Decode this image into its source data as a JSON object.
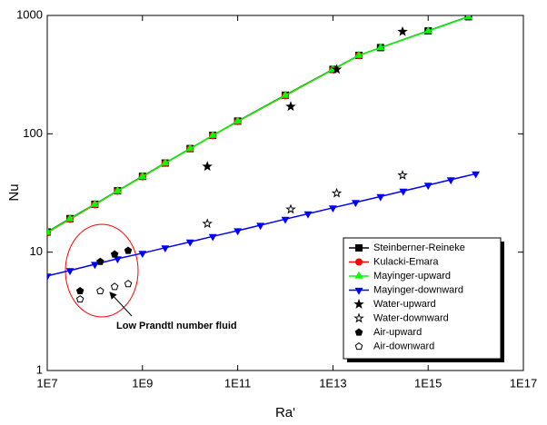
{
  "chart_data": {
    "type": "line",
    "xlabel": "Ra'",
    "ylabel": "Nu",
    "xscale": "log",
    "yscale": "log",
    "xlim": [
      10000000.0,
      1e+17
    ],
    "ylim": [
      1,
      1000
    ],
    "xticks": [
      {
        "value": 10000000.0,
        "label": "1E7"
      },
      {
        "value": 1000000000.0,
        "label": "1E9"
      },
      {
        "value": 100000000000.0,
        "label": "1E11"
      },
      {
        "value": 10000000000000.0,
        "label": "1E13"
      },
      {
        "value": 1000000000000000.0,
        "label": "1E15"
      },
      {
        "value": 1e+17,
        "label": "1E17"
      }
    ],
    "yticks": [
      1,
      10,
      100,
      1000
    ],
    "legend": "lower right",
    "annotation": "Low Prandtl number fluid",
    "series": [
      {
        "name": "Steinberner-Reineke",
        "color": "#000000",
        "marker": "square",
        "filled": true,
        "line": true,
        "x": [
          10000000.0,
          30000000.0,
          100000000.0,
          300000000.0,
          1000000000.0,
          3000000000.0,
          10000000000.0,
          30000000000.0,
          100000000000.0,
          1000000000000.0,
          10000000000000.0,
          35000000000000.0,
          100000000000000.0,
          1000000000000000.0,
          7000000000000000.0
        ],
        "values": [
          14.8,
          19.2,
          25.4,
          33,
          43.7,
          56.6,
          75,
          97,
          128,
          212,
          350,
          460,
          535,
          740,
          975
        ]
      },
      {
        "name": "Kulacki-Emara",
        "color": "#ff0000",
        "marker": "circle",
        "filled": true,
        "line": true,
        "x": [
          10000000.0,
          30000000.0,
          100000000.0,
          300000000.0,
          1000000000.0,
          3000000000.0,
          10000000000.0,
          30000000000.0,
          100000000000.0,
          1000000000000.0,
          10000000000000.0,
          35000000000000.0
        ],
        "values": [
          14.6,
          19,
          25.2,
          32.8,
          43.4,
          56.3,
          74.6,
          96.5,
          127,
          210,
          348,
          458
        ]
      },
      {
        "name": "Mayinger-upward",
        "color": "#00ff00",
        "marker": "triangle-up",
        "filled": true,
        "line": true,
        "x": [
          10000000.0,
          30000000.0,
          100000000.0,
          300000000.0,
          1000000000.0,
          3000000000.0,
          10000000000.0,
          30000000000.0,
          100000000000.0,
          1000000000000.0,
          10000000000000.0,
          35000000000000.0,
          100000000000000.0,
          1000000000000000.0,
          7000000000000000.0
        ],
        "values": [
          14.7,
          19.1,
          25.3,
          32.9,
          43.5,
          56.4,
          74.8,
          96.8,
          127.5,
          211,
          349,
          459,
          534,
          738,
          972
        ]
      },
      {
        "name": "Mayinger-downward",
        "color": "#0000ff",
        "marker": "triangle-down",
        "filled": true,
        "line": true,
        "x": [
          10000000.0,
          30000000.0,
          100000000.0,
          300000000.0,
          1000000000.0,
          3000000000.0,
          10000000000.0,
          30000000000.0,
          100000000000.0,
          300000000000.0,
          1000000000000.0,
          3000000000000.0,
          10000000000000.0,
          30000000000000.0,
          100000000000000.0,
          300000000000000.0,
          1000000000000000.0,
          3000000000000000.0,
          1e+16
        ],
        "values": [
          6.3,
          7.0,
          7.9,
          8.8,
          9.8,
          10.9,
          12.2,
          13.6,
          15.2,
          16.9,
          19,
          21.1,
          23.7,
          26.3,
          29.5,
          32.8,
          36.8,
          40.9,
          46
        ]
      },
      {
        "name": "Water-upward",
        "color": "#000000",
        "marker": "star",
        "filled": true,
        "line": false,
        "x": [
          23000000000.0,
          1300000000000.0,
          12000000000000.0,
          290000000000000.0
        ],
        "values": [
          53,
          170,
          350,
          730
        ]
      },
      {
        "name": "Water-downward",
        "color": "#000000",
        "marker": "star",
        "filled": false,
        "line": false,
        "x": [
          23000000000.0,
          1300000000000.0,
          12000000000000.0,
          290000000000000.0
        ],
        "values": [
          17.4,
          23,
          31.5,
          44.6
        ]
      },
      {
        "name": "Air-upward",
        "color": "#000000",
        "marker": "pentagon",
        "filled": true,
        "line": false,
        "x": [
          49000000.0,
          130000000.0,
          260000000.0,
          500000000.0
        ],
        "values": [
          4.7,
          8.3,
          9.6,
          10.3
        ]
      },
      {
        "name": "Air-downward",
        "color": "#000000",
        "marker": "pentagon",
        "filled": false,
        "line": false,
        "x": [
          49000000.0,
          130000000.0,
          260000000.0,
          500000000.0
        ],
        "values": [
          4.0,
          4.7,
          5.1,
          5.4
        ]
      }
    ]
  }
}
